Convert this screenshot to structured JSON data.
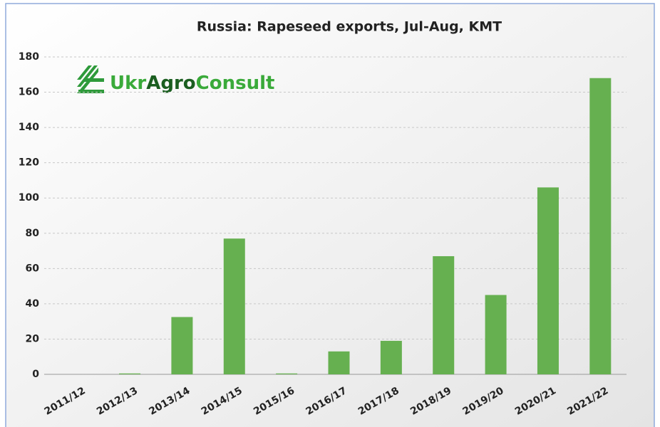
{
  "chart_data": {
    "type": "bar",
    "title": "Russia: Rapeseed exports, Jul-Aug, KMT",
    "brand": [
      "Ukr",
      "Agro",
      "Consult"
    ],
    "categories": [
      "2011/12",
      "2012/13",
      "2013/14",
      "2014/15",
      "2015/16",
      "2016/17",
      "2017/18",
      "2018/19",
      "2019/20",
      "2020/21",
      "2021/22"
    ],
    "values": [
      0,
      0.5,
      32.5,
      77,
      0.5,
      13,
      19,
      67,
      45,
      106,
      168
    ],
    "color": "#66b050",
    "ylim": [
      0,
      180
    ],
    "yticks": [
      0,
      20,
      40,
      60,
      80,
      100,
      120,
      140,
      160,
      180
    ],
    "grid": true
  }
}
